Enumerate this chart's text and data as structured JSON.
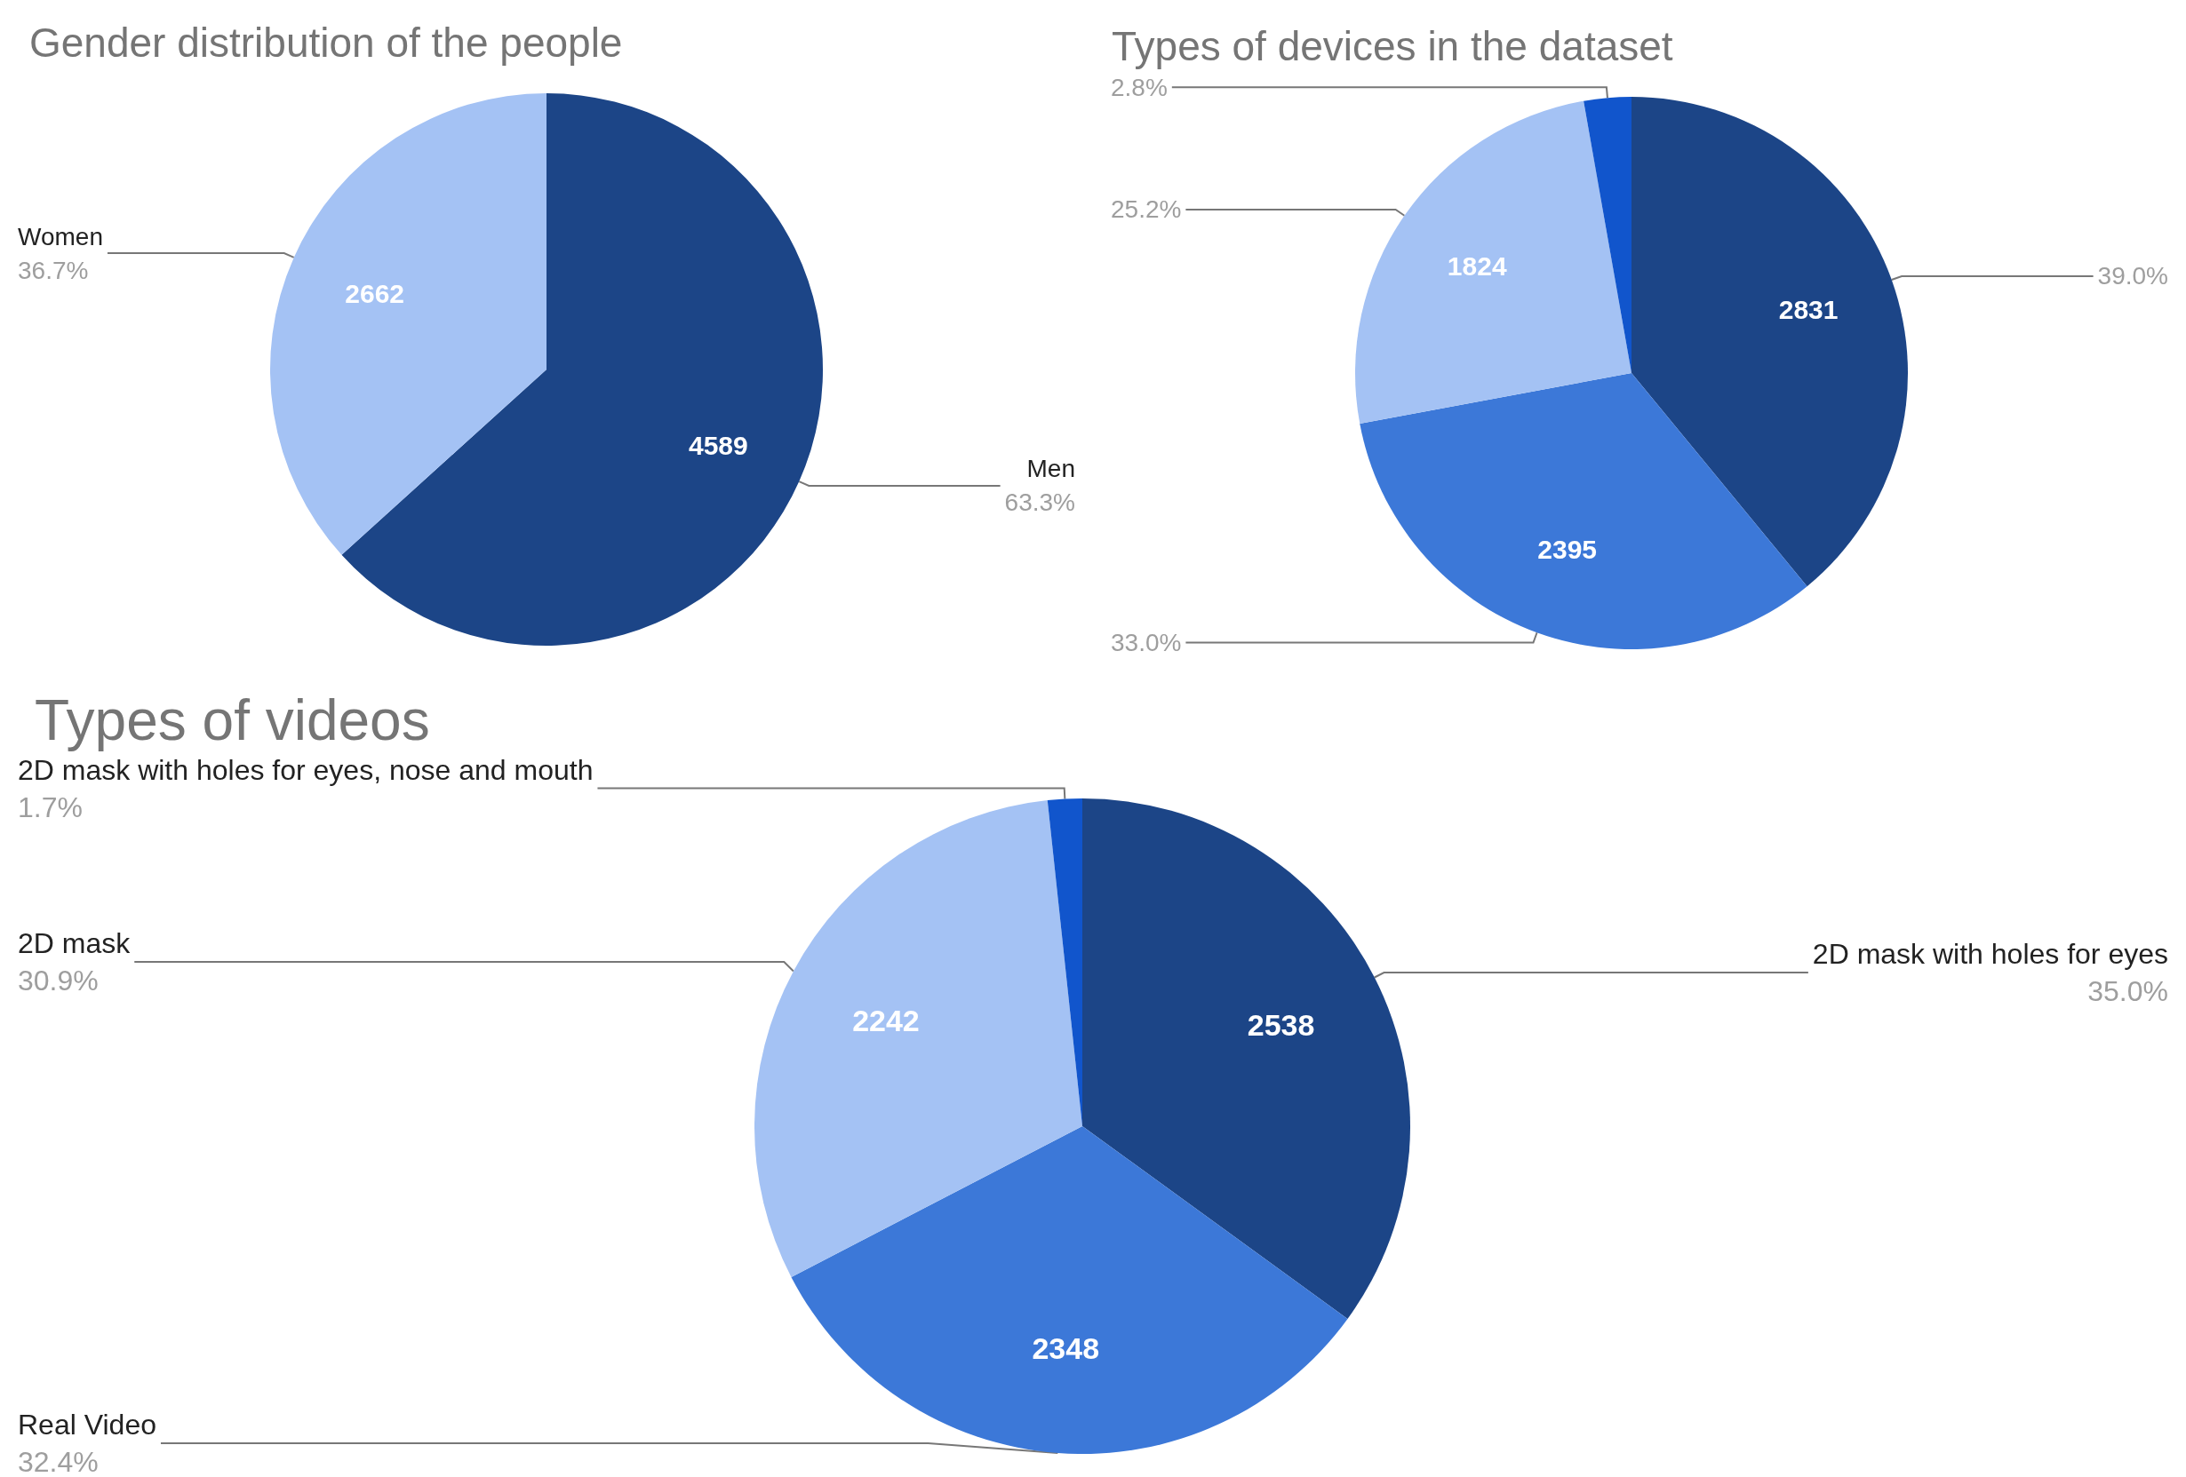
{
  "chart_data": [
    {
      "type": "pie",
      "title": "Gender distribution of the people",
      "categories": [
        "Men",
        "Women"
      ],
      "values": [
        4589,
        2662
      ],
      "colors": [
        "#1c4587",
        "#a4c2f4"
      ],
      "data_labels": true,
      "annotations": [
        "63.3%",
        "36.7%"
      ]
    },
    {
      "type": "pie",
      "title": "Types of devices in the dataset",
      "categories": [
        null,
        null,
        null,
        null
      ],
      "values": [
        2831,
        2395,
        1824,
        201
      ],
      "colors": [
        "#1c4587",
        "#3c78d8",
        "#a4c2f4",
        "#1155cc"
      ],
      "value_labels": [
        "2831",
        "2395",
        "1824",
        null
      ],
      "annotations": [
        "39.0%",
        "33.0%",
        "25.2%",
        "2.8%"
      ]
    },
    {
      "type": "pie",
      "title": "Types of videos",
      "categories": [
        "2D mask with holes for eyes",
        "Real Video",
        "2D mask",
        "2D mask with holes for eyes, nose and mouth"
      ],
      "values": [
        2538,
        2348,
        2242,
        123
      ],
      "colors": [
        "#1c4587",
        "#3c78d8",
        "#a4c2f4",
        "#1155cc"
      ],
      "value_labels": [
        "2538",
        "2348",
        "2242",
        null
      ],
      "annotations": [
        "35.0%",
        "32.4%",
        "30.9%",
        "1.7%"
      ]
    }
  ]
}
